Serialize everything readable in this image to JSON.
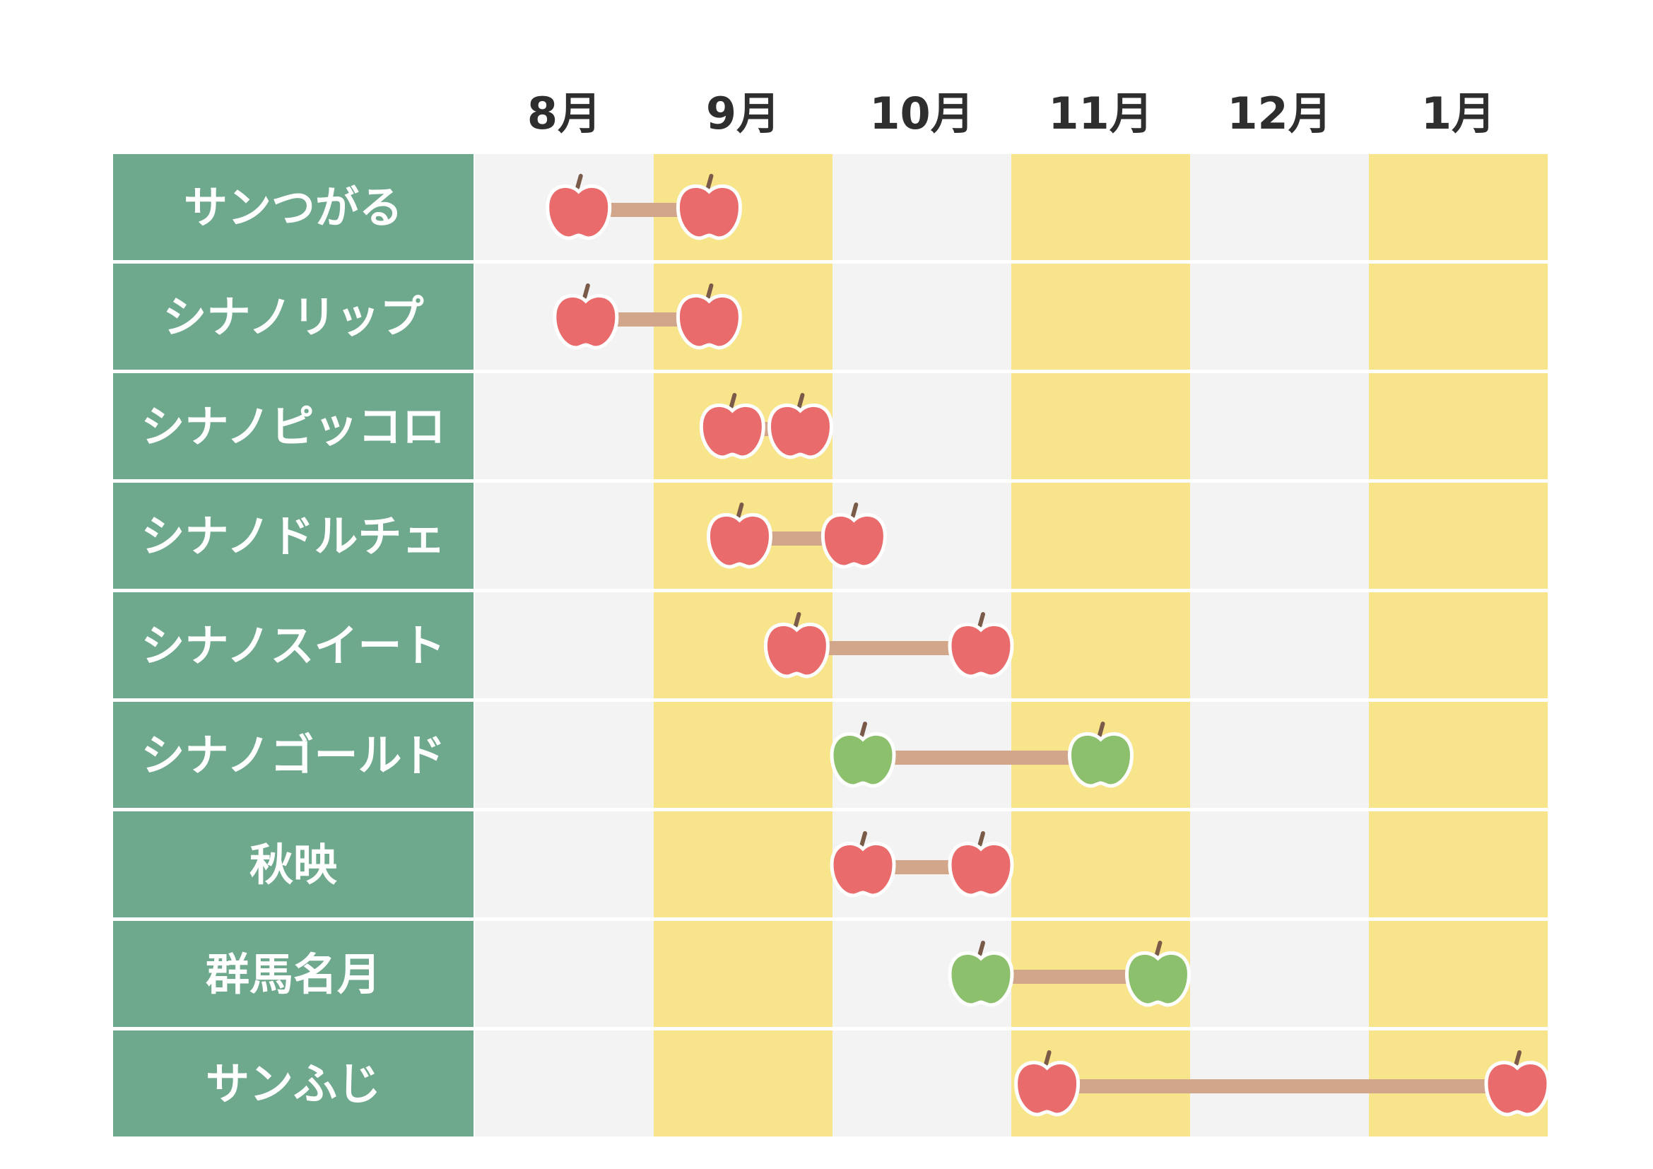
{
  "colors": {
    "label_bg": "#6ea98d",
    "col_light": "#f3f3f3",
    "col_yellow": "#f7e48b",
    "bar": "#d2a68a",
    "apple_red": "#ea6b6c",
    "apple_green": "#8dc06c",
    "stem": "#7a5a48",
    "month_text": "#2e2e2e"
  },
  "chart_data": {
    "type": "range-timeline",
    "months": [
      "8月",
      "9月",
      "10月",
      "11月",
      "12月",
      "1月"
    ],
    "month_unit_note": "",
    "varieties": [
      {
        "name": "サンつがる",
        "start": 8.58,
        "end": 9.31,
        "color": "red"
      },
      {
        "name": "シナノリップ",
        "start": 8.62,
        "end": 9.31,
        "color": "red"
      },
      {
        "name": "シナノピッコロ",
        "start": 9.44,
        "end": 9.82,
        "color": "red"
      },
      {
        "name": "シナノドルチェ",
        "start": 9.48,
        "end": 10.12,
        "color": "red"
      },
      {
        "name": "シナノスイート",
        "start": 9.8,
        "end": 10.83,
        "color": "red"
      },
      {
        "name": "シナノゴールド",
        "start": 10.17,
        "end": 11.5,
        "color": "green"
      },
      {
        "name": "秋映",
        "start": 10.17,
        "end": 10.83,
        "color": "red"
      },
      {
        "name": "群馬名月",
        "start": 10.83,
        "end": 11.82,
        "color": "green"
      },
      {
        "name": "サンふじ",
        "start": 11.2,
        "end": 13.83,
        "color": "red"
      }
    ]
  }
}
